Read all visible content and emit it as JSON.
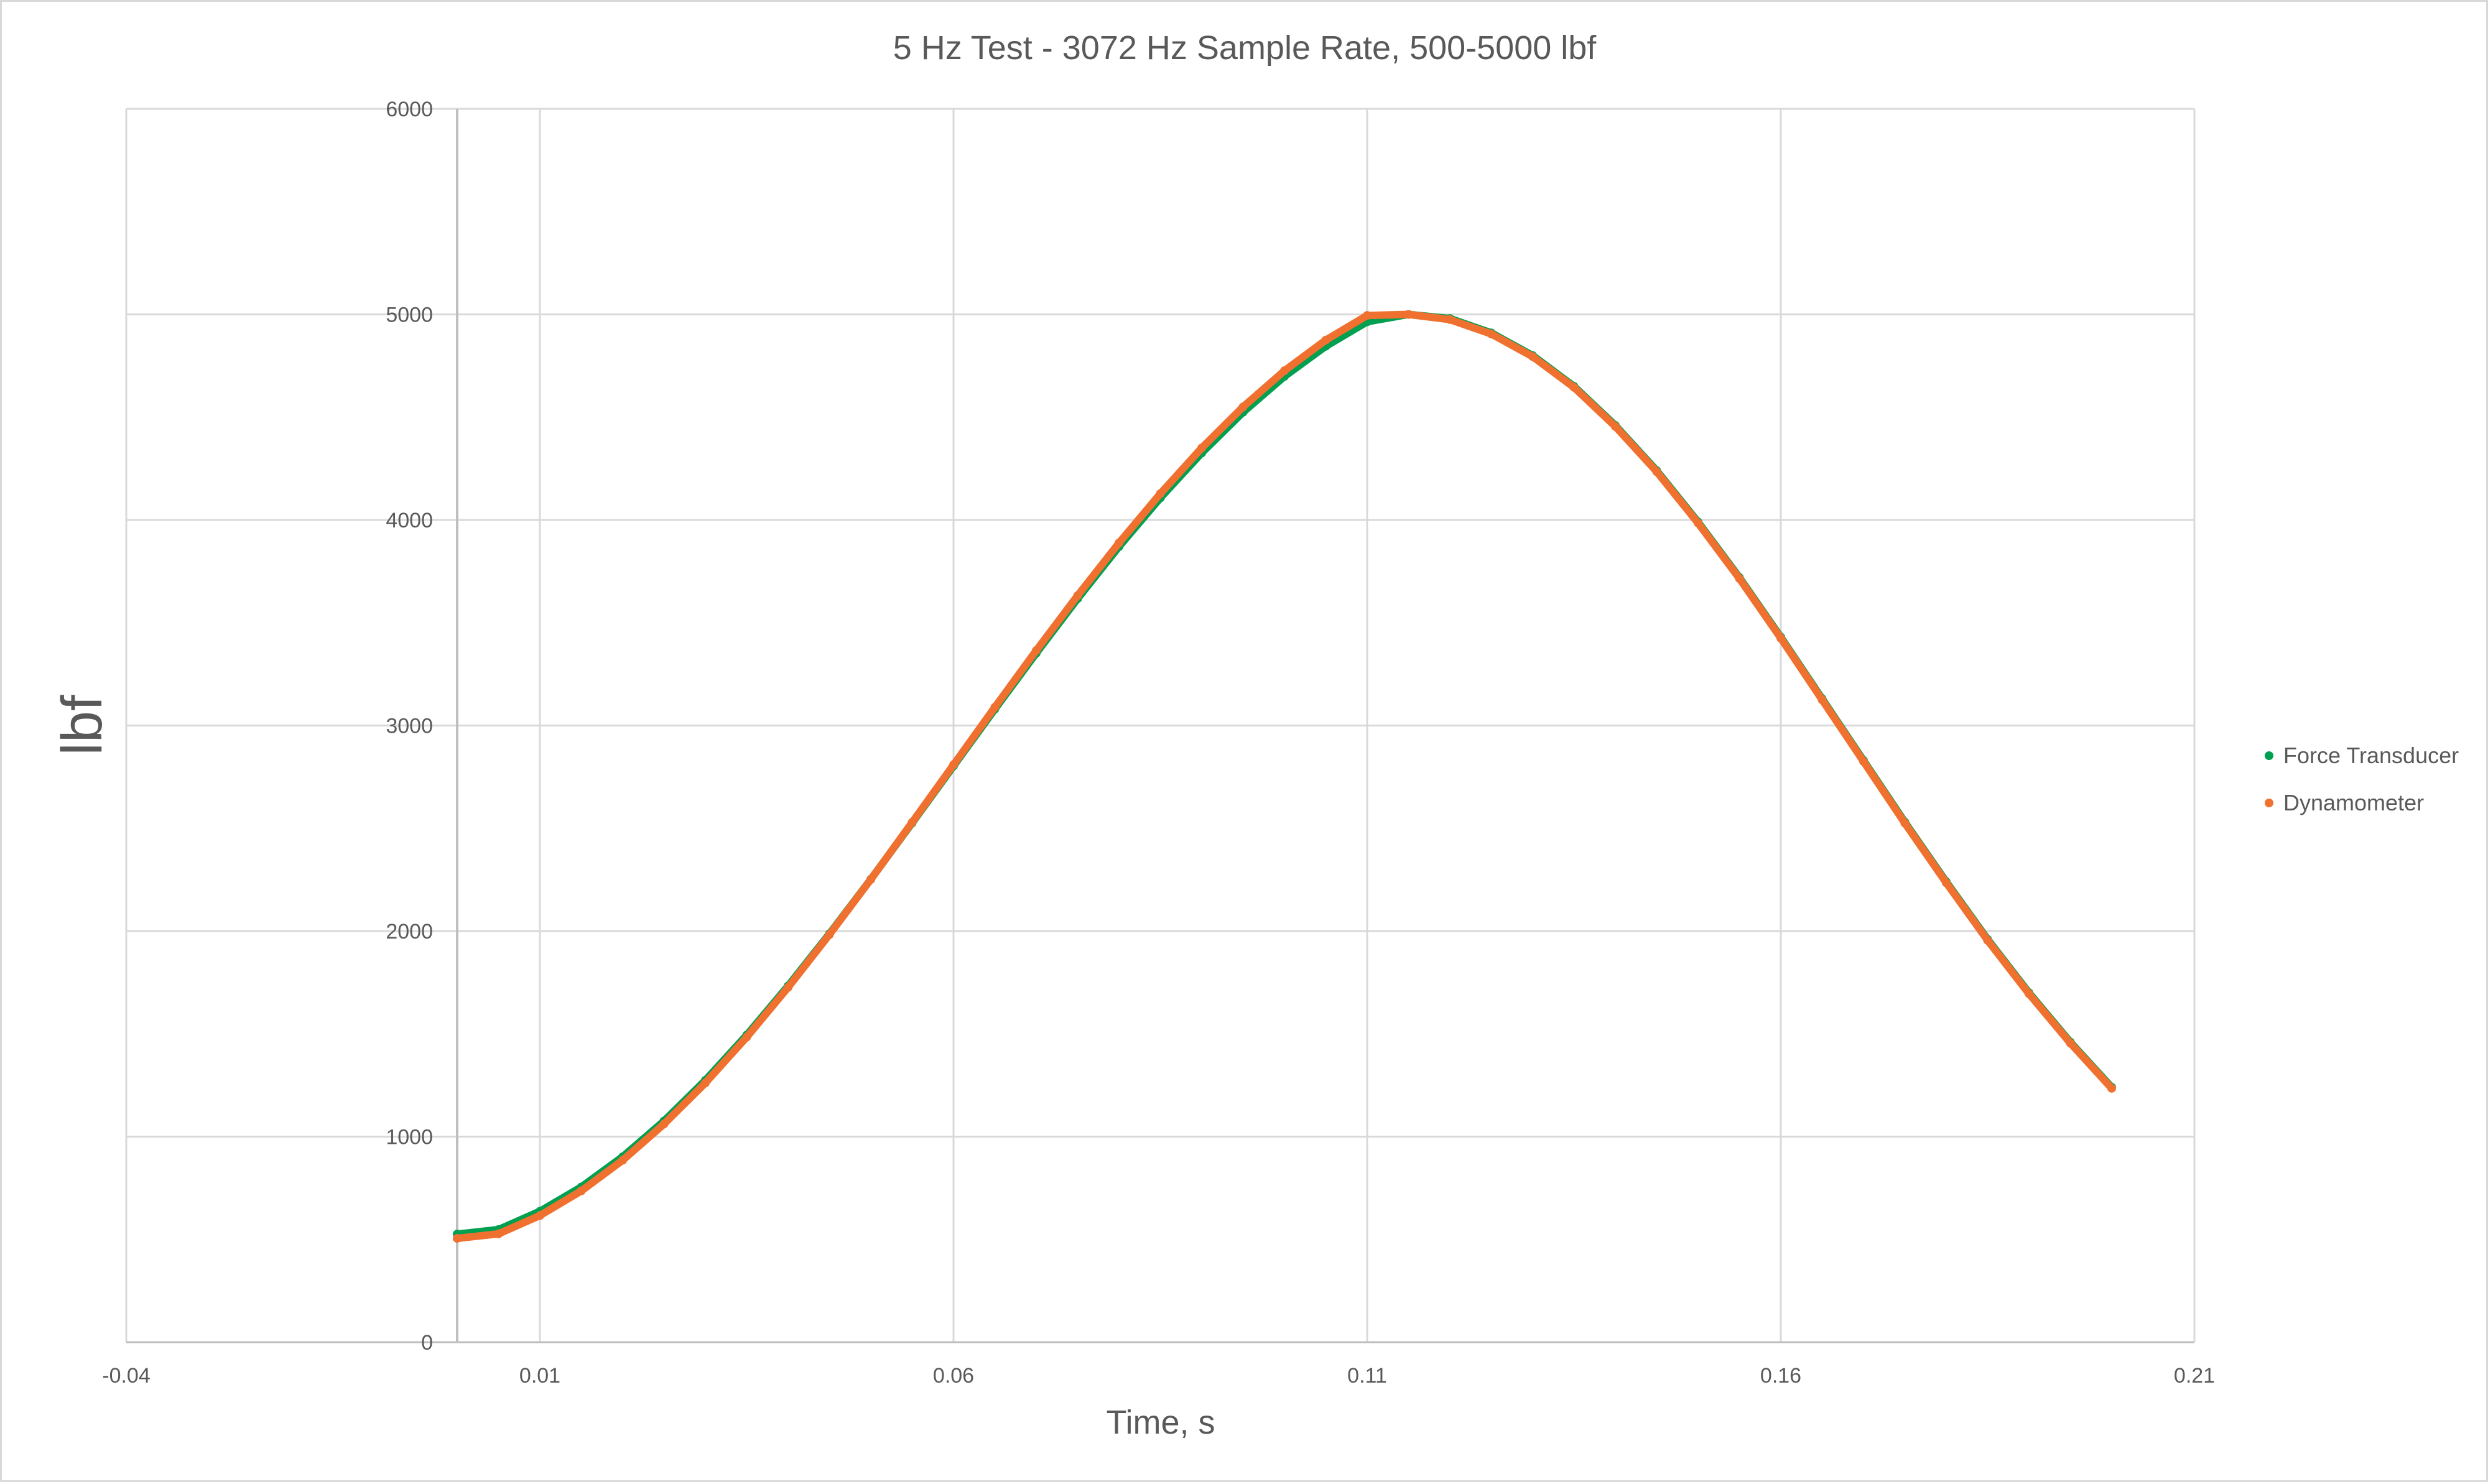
{
  "chart_data": {
    "type": "scatter",
    "title": "5 Hz Test - 3072 Hz Sample Rate, 500-5000 lbf",
    "xlabel": "Time, s",
    "ylabel": "lbf",
    "xlim": [
      -0.04,
      0.21
    ],
    "ylim": [
      0,
      6000
    ],
    "x_ticks": [
      "-0.04",
      "0.01",
      "0.06",
      "0.11",
      "0.16",
      "0.21"
    ],
    "y_ticks": [
      "0",
      "1000",
      "2000",
      "3000",
      "4000",
      "5000",
      "6000"
    ],
    "grid": true,
    "legend_position": "right",
    "series": [
      {
        "name": "Force Transducer",
        "color": "#00a050",
        "points": [
          [
            0.0,
            526
          ],
          [
            0.005,
            548
          ],
          [
            0.01,
            637
          ],
          [
            0.015,
            755
          ],
          [
            0.02,
            902
          ],
          [
            0.025,
            1076
          ],
          [
            0.03,
            1274
          ],
          [
            0.035,
            1494
          ],
          [
            0.04,
            1733
          ],
          [
            0.045,
            1987
          ],
          [
            0.05,
            2252
          ],
          [
            0.055,
            2526
          ],
          [
            0.06,
            2803
          ],
          [
            0.065,
            3080
          ],
          [
            0.07,
            3352
          ],
          [
            0.075,
            3617
          ],
          [
            0.08,
            3870
          ],
          [
            0.085,
            4107
          ],
          [
            0.09,
            4326
          ],
          [
            0.095,
            4524
          ],
          [
            0.1,
            4698
          ],
          [
            0.105,
            4845
          ],
          [
            0.11,
            4964
          ],
          [
            0.115,
            5000
          ],
          [
            0.12,
            4980
          ],
          [
            0.125,
            4910
          ],
          [
            0.13,
            4800
          ],
          [
            0.135,
            4650
          ],
          [
            0.14,
            4460
          ],
          [
            0.145,
            4240
          ],
          [
            0.15,
            3990
          ],
          [
            0.155,
            3720
          ],
          [
            0.16,
            3430
          ],
          [
            0.165,
            3130
          ],
          [
            0.17,
            2830
          ],
          [
            0.175,
            2530
          ],
          [
            0.18,
            2240
          ],
          [
            0.185,
            1960
          ],
          [
            0.19,
            1700
          ],
          [
            0.195,
            1460
          ],
          [
            0.2,
            1240
          ]
        ]
      },
      {
        "name": "Dynamometer",
        "color": "#f07030",
        "points": [
          [
            0.0,
            505
          ],
          [
            0.005,
            527
          ],
          [
            0.01,
            616
          ],
          [
            0.015,
            736
          ],
          [
            0.02,
            885
          ],
          [
            0.025,
            1061
          ],
          [
            0.03,
            1261
          ],
          [
            0.035,
            1484
          ],
          [
            0.04,
            1726
          ],
          [
            0.045,
            1983
          ],
          [
            0.05,
            2251
          ],
          [
            0.055,
            2529
          ],
          [
            0.06,
            2809
          ],
          [
            0.065,
            3089
          ],
          [
            0.07,
            3365
          ],
          [
            0.075,
            3632
          ],
          [
            0.08,
            3888
          ],
          [
            0.085,
            4128
          ],
          [
            0.09,
            4350
          ],
          [
            0.095,
            4550
          ],
          [
            0.1,
            4726
          ],
          [
            0.105,
            4875
          ],
          [
            0.11,
            4995
          ],
          [
            0.115,
            5000
          ],
          [
            0.12,
            4975
          ],
          [
            0.125,
            4905
          ],
          [
            0.13,
            4795
          ],
          [
            0.135,
            4645
          ],
          [
            0.14,
            4455
          ],
          [
            0.145,
            4235
          ],
          [
            0.15,
            3985
          ],
          [
            0.155,
            3715
          ],
          [
            0.16,
            3425
          ],
          [
            0.165,
            3125
          ],
          [
            0.17,
            2825
          ],
          [
            0.175,
            2525
          ],
          [
            0.18,
            2235
          ],
          [
            0.185,
            1955
          ],
          [
            0.19,
            1695
          ],
          [
            0.195,
            1455
          ],
          [
            0.2,
            1235
          ]
        ]
      }
    ]
  }
}
